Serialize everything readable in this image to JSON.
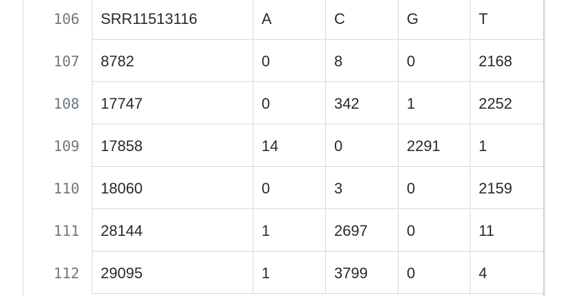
{
  "rows": [
    {
      "line": "106",
      "cells": [
        "SRR11513116",
        "A",
        "C",
        "G",
        "T"
      ]
    },
    {
      "line": "107",
      "cells": [
        "8782",
        "0",
        "8",
        "0",
        "2168"
      ]
    },
    {
      "line": "108",
      "cells": [
        "17747",
        "0",
        "342",
        "1",
        "2252"
      ]
    },
    {
      "line": "109",
      "cells": [
        "17858",
        "14",
        "0",
        "2291",
        "1"
      ]
    },
    {
      "line": "110",
      "cells": [
        "18060",
        "0",
        "3",
        "0",
        "2159"
      ]
    },
    {
      "line": "111",
      "cells": [
        "28144",
        "1",
        "2697",
        "0",
        "11"
      ]
    },
    {
      "line": "112",
      "cells": [
        "29095",
        "1",
        "3799",
        "0",
        "4"
      ]
    }
  ]
}
